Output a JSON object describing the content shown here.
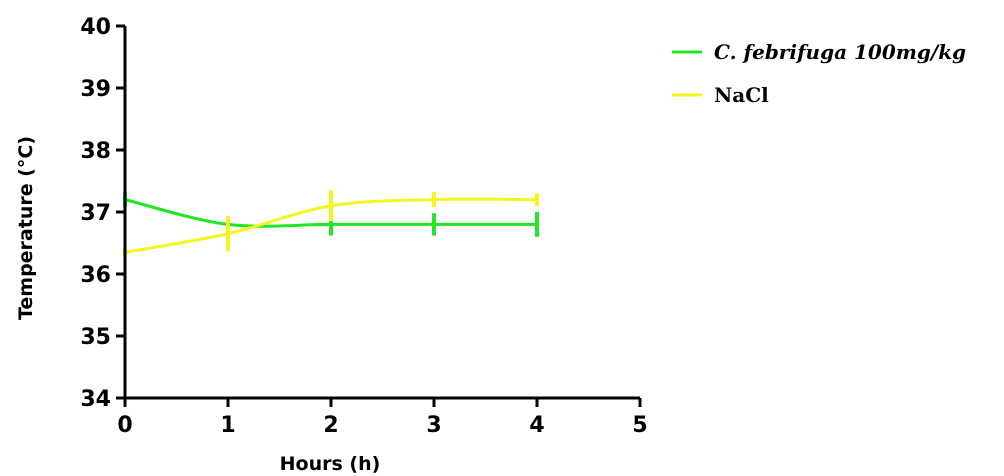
{
  "chart_data": {
    "type": "line",
    "xlabel": "Hours (h)",
    "ylabel": "Temperature (°C)",
    "xlim": [
      0,
      5
    ],
    "ylim": [
      34,
      40
    ],
    "x_ticks": [
      "0",
      "1",
      "2",
      "3",
      "4",
      "5"
    ],
    "y_ticks": [
      "34",
      "35",
      "36",
      "37",
      "38",
      "39",
      "40"
    ],
    "grid": false,
    "legend_position": "top-right",
    "x": [
      0,
      1,
      2,
      3,
      4
    ],
    "series": [
      {
        "name": "C. febrifuga 100mg/kg",
        "color": "#22e622",
        "values": [
          37.2,
          36.8,
          36.8,
          36.8,
          36.8
        ],
        "errors": [
          0.12,
          0.12,
          0.18,
          0.18,
          0.2
        ]
      },
      {
        "name": "NaCl",
        "color": "#f5f51e",
        "values": [
          36.35,
          36.65,
          37.1,
          37.2,
          37.2
        ],
        "errors": [
          0.06,
          0.28,
          0.25,
          0.12,
          0.1
        ]
      }
    ]
  }
}
